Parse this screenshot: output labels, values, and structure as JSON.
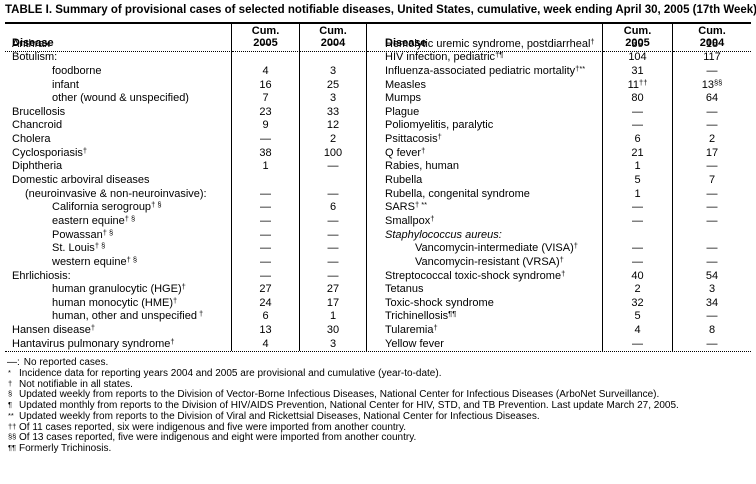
{
  "title": "TABLE I. Summary of provisional cases of selected notifiable diseases, United States, cumulative, week ending April 30, 2005 (17th Week)*",
  "header": {
    "disease": "Disease",
    "cum": "Cum.",
    "year_2005": "2005",
    "year_2004": "2004"
  },
  "table": {
    "left_rows": [
      {
        "name": "Anthrax",
        "sup": "",
        "indent": 0,
        "italic": false,
        "v2005": "—",
        "v2005_sup": "",
        "v2004": "—",
        "v2004_sup": ""
      },
      {
        "name": "Botulism:",
        "sup": "",
        "indent": 0,
        "italic": false,
        "v2005": "",
        "v2005_sup": "",
        "v2004": "",
        "v2004_sup": ""
      },
      {
        "name": "foodborne",
        "sup": "",
        "indent": 2,
        "italic": false,
        "v2005": "4",
        "v2005_sup": "",
        "v2004": "3",
        "v2004_sup": ""
      },
      {
        "name": "infant",
        "sup": "",
        "indent": 2,
        "italic": false,
        "v2005": "16",
        "v2005_sup": "",
        "v2004": "25",
        "v2004_sup": ""
      },
      {
        "name": "other (wound & unspecified)",
        "sup": "",
        "indent": 2,
        "italic": false,
        "v2005": "7",
        "v2005_sup": "",
        "v2004": "3",
        "v2004_sup": ""
      },
      {
        "name": "Brucellosis",
        "sup": "",
        "indent": 0,
        "italic": false,
        "v2005": "23",
        "v2005_sup": "",
        "v2004": "33",
        "v2004_sup": ""
      },
      {
        "name": "Chancroid",
        "sup": "",
        "indent": 0,
        "italic": false,
        "v2005": "9",
        "v2005_sup": "",
        "v2004": "12",
        "v2004_sup": ""
      },
      {
        "name": "Cholera",
        "sup": "",
        "indent": 0,
        "italic": false,
        "v2005": "—",
        "v2005_sup": "",
        "v2004": "2",
        "v2004_sup": ""
      },
      {
        "name": "Cyclosporiasis",
        "sup": "†",
        "indent": 0,
        "italic": false,
        "v2005": "38",
        "v2005_sup": "",
        "v2004": "100",
        "v2004_sup": ""
      },
      {
        "name": "Diphtheria",
        "sup": "",
        "indent": 0,
        "italic": false,
        "v2005": "1",
        "v2005_sup": "",
        "v2004": "—",
        "v2004_sup": ""
      },
      {
        "name": "Domestic arboviral diseases",
        "sup": "",
        "indent": 0,
        "italic": false,
        "v2005": "",
        "v2005_sup": "",
        "v2004": "",
        "v2004_sup": ""
      },
      {
        "name": "(neuroinvasive & non-neuroinvasive):",
        "sup": "",
        "indent": 1,
        "italic": false,
        "v2005": "—",
        "v2005_sup": "",
        "v2004": "—",
        "v2004_sup": ""
      },
      {
        "name": "California serogroup",
        "sup": "† §",
        "indent": 2,
        "italic": false,
        "v2005": "—",
        "v2005_sup": "",
        "v2004": "6",
        "v2004_sup": ""
      },
      {
        "name": "eastern equine",
        "sup": "† §",
        "indent": 2,
        "italic": false,
        "v2005": "—",
        "v2005_sup": "",
        "v2004": "—",
        "v2004_sup": ""
      },
      {
        "name": "Powassan",
        "sup": "† §",
        "indent": 2,
        "italic": false,
        "v2005": "—",
        "v2005_sup": "",
        "v2004": "—",
        "v2004_sup": ""
      },
      {
        "name": "St. Louis",
        "sup": "† §",
        "indent": 2,
        "italic": false,
        "v2005": "—",
        "v2005_sup": "",
        "v2004": "—",
        "v2004_sup": ""
      },
      {
        "name": "western equine",
        "sup": "† §",
        "indent": 2,
        "italic": false,
        "v2005": "—",
        "v2005_sup": "",
        "v2004": "—",
        "v2004_sup": ""
      },
      {
        "name": "Ehrlichiosis:",
        "sup": "",
        "indent": 0,
        "italic": false,
        "v2005": "—",
        "v2005_sup": "",
        "v2004": "—",
        "v2004_sup": ""
      },
      {
        "name": "human granulocytic (HGE)",
        "sup": "†",
        "indent": 2,
        "italic": false,
        "v2005": "27",
        "v2005_sup": "",
        "v2004": "27",
        "v2004_sup": ""
      },
      {
        "name": "human monocytic (HME)",
        "sup": "†",
        "indent": 2,
        "italic": false,
        "v2005": "24",
        "v2005_sup": "",
        "v2004": "17",
        "v2004_sup": ""
      },
      {
        "name": "human, other and unspecified",
        "sup": " †",
        "indent": 2,
        "italic": false,
        "v2005": "6",
        "v2005_sup": "",
        "v2004": "1",
        "v2004_sup": ""
      },
      {
        "name": "Hansen disease",
        "sup": "†",
        "indent": 0,
        "italic": false,
        "v2005": "13",
        "v2005_sup": "",
        "v2004": "30",
        "v2004_sup": ""
      },
      {
        "name": "Hantavirus pulmonary syndrome",
        "sup": "†",
        "indent": 0,
        "italic": false,
        "v2005": "4",
        "v2005_sup": "",
        "v2004": "3",
        "v2004_sup": ""
      }
    ],
    "right_rows": [
      {
        "name": "Hemolytic uremic syndrome, postdiarrheal",
        "sup": "†",
        "indent": 0,
        "italic": false,
        "v2005": "39",
        "v2005_sup": "",
        "v2004": "18",
        "v2004_sup": ""
      },
      {
        "name": "HIV infection, pediatric",
        "sup": "†¶",
        "indent": 0,
        "italic": false,
        "v2005": "104",
        "v2005_sup": "",
        "v2004": "117",
        "v2004_sup": ""
      },
      {
        "name": "Influenza-associated pediatric mortality",
        "sup": "†**",
        "indent": 0,
        "italic": false,
        "v2005": "31",
        "v2005_sup": "",
        "v2004": "—",
        "v2004_sup": ""
      },
      {
        "name": "Measles",
        "sup": "",
        "indent": 0,
        "italic": false,
        "v2005": "11",
        "v2005_sup": "††",
        "v2004": "13",
        "v2004_sup": "§§"
      },
      {
        "name": "Mumps",
        "sup": "",
        "indent": 0,
        "italic": false,
        "v2005": "80",
        "v2005_sup": "",
        "v2004": "64",
        "v2004_sup": ""
      },
      {
        "name": "Plague",
        "sup": "",
        "indent": 0,
        "italic": false,
        "v2005": "—",
        "v2005_sup": "",
        "v2004": "—",
        "v2004_sup": ""
      },
      {
        "name": "Poliomyelitis, paralytic",
        "sup": "",
        "indent": 0,
        "italic": false,
        "v2005": "—",
        "v2005_sup": "",
        "v2004": "—",
        "v2004_sup": ""
      },
      {
        "name": "Psittacosis",
        "sup": "†",
        "indent": 0,
        "italic": false,
        "v2005": "6",
        "v2005_sup": "",
        "v2004": "2",
        "v2004_sup": ""
      },
      {
        "name": "Q fever",
        "sup": "†",
        "indent": 0,
        "italic": false,
        "v2005": "21",
        "v2005_sup": "",
        "v2004": "17",
        "v2004_sup": ""
      },
      {
        "name": "Rabies, human",
        "sup": "",
        "indent": 0,
        "italic": false,
        "v2005": "1",
        "v2005_sup": "",
        "v2004": "—",
        "v2004_sup": ""
      },
      {
        "name": "Rubella",
        "sup": "",
        "indent": 0,
        "italic": false,
        "v2005": "5",
        "v2005_sup": "",
        "v2004": "7",
        "v2004_sup": ""
      },
      {
        "name": "Rubella, congenital syndrome",
        "sup": "",
        "indent": 0,
        "italic": false,
        "v2005": "1",
        "v2005_sup": "",
        "v2004": "—",
        "v2004_sup": ""
      },
      {
        "name": "SARS",
        "sup": "† **",
        "indent": 0,
        "italic": false,
        "v2005": "—",
        "v2005_sup": "",
        "v2004": "—",
        "v2004_sup": ""
      },
      {
        "name": "Smallpox",
        "sup": "†",
        "indent": 0,
        "italic": false,
        "v2005": "—",
        "v2005_sup": "",
        "v2004": "—",
        "v2004_sup": ""
      },
      {
        "name": "Staphylococcus aureus:",
        "sup": "",
        "indent": 0,
        "italic": true,
        "v2005": "",
        "v2005_sup": "",
        "v2004": "",
        "v2004_sup": ""
      },
      {
        "name": "Vancomycin-intermediate (VISA)",
        "sup": "†",
        "indent": 2,
        "italic": false,
        "v2005": "—",
        "v2005_sup": "",
        "v2004": "—",
        "v2004_sup": ""
      },
      {
        "name": "Vancomycin-resistant (VRSA)",
        "sup": "†",
        "indent": 2,
        "italic": false,
        "v2005": "—",
        "v2005_sup": "",
        "v2004": "—",
        "v2004_sup": ""
      },
      {
        "name": "Streptococcal toxic-shock syndrome",
        "sup": "†",
        "indent": 0,
        "italic": false,
        "v2005": "40",
        "v2005_sup": "",
        "v2004": "54",
        "v2004_sup": ""
      },
      {
        "name": "Tetanus",
        "sup": "",
        "indent": 0,
        "italic": false,
        "v2005": "2",
        "v2005_sup": "",
        "v2004": "3",
        "v2004_sup": ""
      },
      {
        "name": "Toxic-shock syndrome",
        "sup": "",
        "indent": 0,
        "italic": false,
        "v2005": "32",
        "v2005_sup": "",
        "v2004": "34",
        "v2004_sup": ""
      },
      {
        "name": "Trichinellosis",
        "sup": "¶¶",
        "indent": 0,
        "italic": false,
        "v2005": "5",
        "v2005_sup": "",
        "v2004": "—",
        "v2004_sup": ""
      },
      {
        "name": "Tularemia",
        "sup": "†",
        "indent": 0,
        "italic": false,
        "v2005": "4",
        "v2005_sup": "",
        "v2004": "8",
        "v2004_sup": ""
      },
      {
        "name": "Yellow fever",
        "sup": "",
        "indent": 0,
        "italic": false,
        "v2005": "—",
        "v2005_sup": "",
        "v2004": "—",
        "v2004_sup": ""
      }
    ]
  },
  "footnotes": [
    {
      "mark": "—:",
      "sup": false,
      "text": "No reported cases."
    },
    {
      "mark": "*",
      "sup": true,
      "text": "Incidence data for reporting years 2004 and 2005 are provisional and cumulative (year-to-date)."
    },
    {
      "mark": "†",
      "sup": true,
      "text": "Not notifiable in all states."
    },
    {
      "mark": "§",
      "sup": true,
      "text": "Updated weekly from reports to the Division of Vector-Borne Infectious Diseases, National Center for Infectious Diseases (ArboNet Surveillance)."
    },
    {
      "mark": "¶",
      "sup": true,
      "text": "Updated monthly from reports to the Division of HIV/AIDS Prevention, National Center for HIV, STD, and TB Prevention. Last update March 27, 2005."
    },
    {
      "mark": "**",
      "sup": true,
      "text": "Updated weekly from reports to the Division of Viral and Rickettsial Diseases, National Center for Infectious Diseases."
    },
    {
      "mark": "††",
      "sup": true,
      "text": "Of 11 cases reported, six were indigenous and five were imported from another country."
    },
    {
      "mark": "§§",
      "sup": true,
      "text": "Of 13 cases reported, five were indigenous and eight were imported from another country."
    },
    {
      "mark": "¶¶",
      "sup": true,
      "text": "Formerly Trichinosis."
    }
  ]
}
